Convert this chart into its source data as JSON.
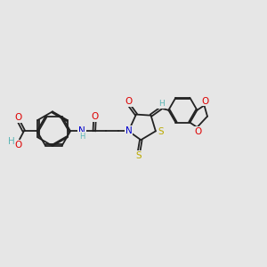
{
  "bg_color": "#e6e6e6",
  "bond_color": "#222222",
  "bond_width": 1.3,
  "dbo": 0.05,
  "atom_colors": {
    "O": "#dd0000",
    "N": "#0000cc",
    "S": "#bbaa00",
    "H": "#5ab5b5",
    "C": "#222222"
  },
  "fs": 7.5,
  "fss": 6.0
}
